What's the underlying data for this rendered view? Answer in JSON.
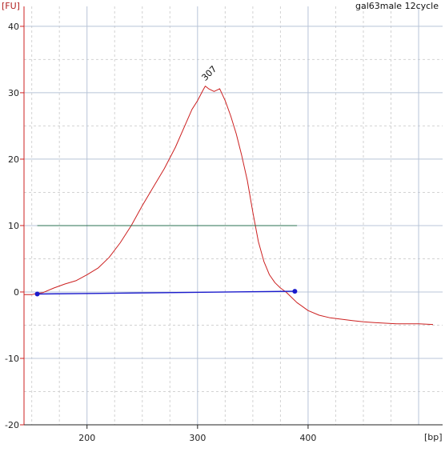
{
  "chart_data": {
    "type": "line",
    "title": "gal63male 12cycle",
    "ylabel": "[FU]",
    "xlabel": "[bp]",
    "ylim": [
      -20,
      43
    ],
    "xlim": [
      143,
      513
    ],
    "yticks": [
      40,
      30,
      20,
      10,
      0,
      -10,
      -20
    ],
    "xticks": [
      200,
      300,
      400
    ],
    "grid": true,
    "colors": {
      "trace": "#cc2020",
      "threshold": "#2a7050",
      "baseline": "#1a1acc",
      "axis": "#cc2020",
      "grid_major": "#b8c4d8",
      "grid_minor": "#d2d2d2"
    },
    "series": [
      {
        "name": "",
        "role": "electropherogram",
        "x": [
          143,
          150,
          155,
          160,
          170,
          180,
          190,
          200,
          210,
          220,
          230,
          240,
          250,
          260,
          270,
          280,
          290,
          295,
          300,
          305,
          307,
          310,
          315,
          320,
          325,
          330,
          335,
          340,
          345,
          350,
          355,
          360,
          365,
          370,
          375,
          380,
          385,
          390,
          395,
          400,
          410,
          420,
          430,
          440,
          450,
          460,
          470,
          480,
          490,
          500,
          513
        ],
        "y": [
          -0.4,
          -0.4,
          -0.2,
          -0.1,
          0.6,
          1.2,
          1.7,
          2.6,
          3.6,
          5.2,
          7.4,
          10.0,
          13.0,
          15.8,
          18.6,
          21.8,
          25.6,
          27.5,
          28.8,
          30.4,
          31.0,
          30.6,
          30.2,
          30.6,
          28.8,
          26.5,
          23.8,
          20.5,
          16.8,
          12.0,
          7.6,
          4.6,
          2.6,
          1.4,
          0.6,
          0.0,
          -0.8,
          -1.6,
          -2.2,
          -2.8,
          -3.5,
          -3.9,
          -4.1,
          -4.3,
          -4.5,
          -4.6,
          -4.7,
          -4.8,
          -4.8,
          -4.8,
          -4.9
        ]
      },
      {
        "name": "",
        "role": "threshold",
        "x": [
          155,
          390
        ],
        "y": [
          10,
          10
        ]
      },
      {
        "name": "",
        "role": "baseline",
        "x": [
          155,
          388
        ],
        "y": [
          -0.3,
          0.1
        ]
      }
    ],
    "markers": [
      {
        "x": 155,
        "y": -0.3
      },
      {
        "x": 388,
        "y": 0.1
      }
    ],
    "annotations": [
      {
        "text": "307",
        "x": 307,
        "y": 31.0
      }
    ]
  }
}
